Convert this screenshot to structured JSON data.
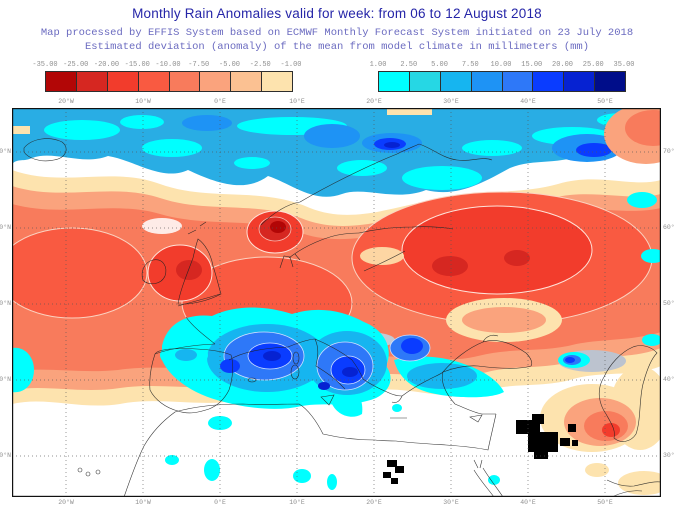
{
  "title": "Monthly Rain Anomalies valid for week: from 06 to 12 August 2018",
  "subtitle_line1": "Map processed by EFFIS System based on ECMWF Monthly Forecast System initiated on 23 July 2018",
  "subtitle_line2": "Estimated deviation (anomaly) of the mean from model climate in millimeters (mm)",
  "colors": {
    "title_text": "#2525a8",
    "subtitle_text": "#6b6bc0",
    "tick_text": "#8f8f8f",
    "no_data": "#000000"
  },
  "legend": {
    "negative": {
      "labels": [
        "-35.00",
        "-25.00",
        "-20.00",
        "-15.00",
        "-10.00",
        "-7.50",
        "-5.00",
        "-2.50",
        "-1.00"
      ],
      "colors": [
        "#b20606",
        "#d62721",
        "#f23c2c",
        "#f95a41",
        "#f87b5c",
        "#faa37d",
        "#fbc192",
        "#fde3ae"
      ]
    },
    "positive": {
      "labels": [
        "1.00",
        "2.50",
        "5.00",
        "7.50",
        "10.00",
        "15.00",
        "20.00",
        "25.00",
        "35.00"
      ],
      "colors": [
        "#00ffff",
        "#26d7e4",
        "#16b5f0",
        "#1e93f5",
        "#2e78f8",
        "#0a3cff",
        "#0622d2",
        "#000d8a"
      ]
    }
  },
  "map": {
    "x_ticks": [
      "20°W",
      "10°W",
      "0°E",
      "10°E",
      "20°E",
      "30°E",
      "40°E",
      "50°E"
    ],
    "y_ticks": [
      "70°N",
      "60°N",
      "50°N",
      "40°N",
      "30°N"
    ]
  }
}
